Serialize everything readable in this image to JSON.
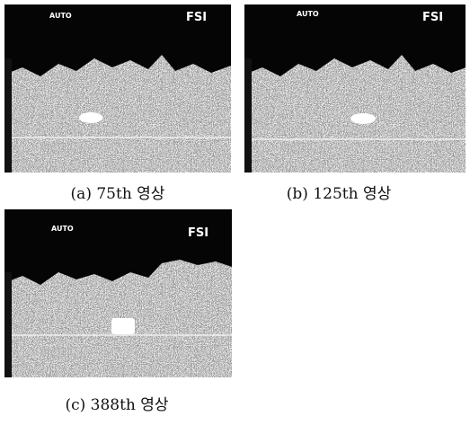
{
  "panels": [
    {
      "overlay_left": "AUTO",
      "overlay_right": "FSI",
      "caption": "(a) 75th 영상"
    },
    {
      "overlay_left": "AUTO",
      "overlay_right": "FSI",
      "caption": "(b) 125th 영상"
    },
    {
      "overlay_left": "AUTO",
      "overlay_right": "FSI",
      "caption": "(c) 388th 영상"
    }
  ]
}
